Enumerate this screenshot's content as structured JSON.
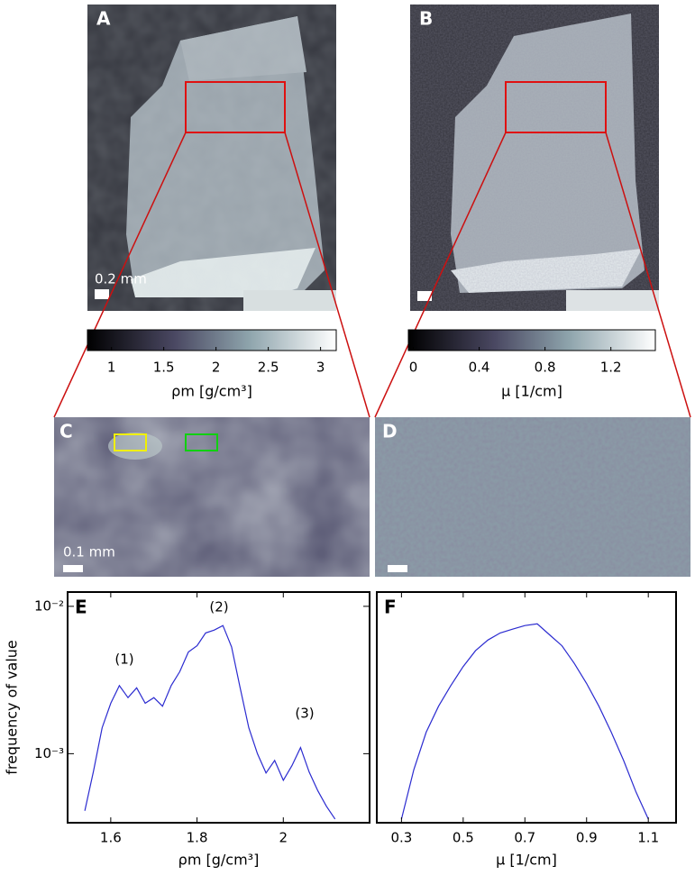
{
  "panels": [
    {
      "label": "A",
      "scale_label": "0.2 mm"
    },
    {
      "label": "B"
    },
    {
      "label": "C",
      "scale_label": "0.1 mm"
    },
    {
      "label": "D"
    }
  ],
  "colorbars": [
    {
      "label": "ρm [g/cm³]",
      "lim": [
        0.77,
        3.15
      ],
      "ticks": [
        1,
        1.5,
        2,
        2.5,
        3
      ]
    },
    {
      "label": "μ [1/cm]",
      "lim": [
        -0.03,
        1.47
      ],
      "ticks": [
        0,
        0.4,
        0.8,
        1.2
      ]
    }
  ],
  "chart_data": [
    {
      "type": "line",
      "label": "E",
      "ylabel": "frequency of value",
      "xlabel": "ρm [g/cm³]",
      "log_y": true,
      "xlim": [
        1.5,
        2.2
      ],
      "xticks": [
        1.6,
        1.8,
        2
      ],
      "ylim": [
        0.00034,
        0.0125
      ],
      "yticks": [
        {
          "value": 0.01,
          "label": "10⁻²"
        },
        {
          "value": 0.001,
          "label": "10⁻³"
        }
      ],
      "annotations": [
        "(1)",
        "(2)",
        "(3)"
      ],
      "series": [
        {
          "color": "#2b2bd0",
          "x": [
            1.54,
            1.56,
            1.58,
            1.6,
            1.62,
            1.64,
            1.66,
            1.68,
            1.7,
            1.72,
            1.74,
            1.76,
            1.78,
            1.8,
            1.82,
            1.84,
            1.86,
            1.88,
            1.9,
            1.92,
            1.94,
            1.96,
            1.98,
            2.0,
            2.02,
            2.04,
            2.06,
            2.08,
            2.1,
            2.12
          ],
          "values": [
            0.00041,
            0.00076,
            0.0015,
            0.0022,
            0.0029,
            0.0024,
            0.0028,
            0.0022,
            0.0024,
            0.0021,
            0.0029,
            0.0036,
            0.0049,
            0.0054,
            0.0066,
            0.0069,
            0.0074,
            0.0053,
            0.0028,
            0.0015,
            0.001,
            0.00074,
            0.0009,
            0.00066,
            0.00083,
            0.0011,
            0.00075,
            0.00056,
            0.00044,
            0.00036
          ]
        }
      ]
    },
    {
      "type": "line",
      "label": "F",
      "xlabel": "μ [1/cm]",
      "log_y": true,
      "xlim": [
        0.22,
        1.19
      ],
      "xticks": [
        0.3,
        0.5,
        0.7,
        0.9,
        1.1
      ],
      "ylim": [
        0.00034,
        0.0125
      ],
      "series": [
        {
          "color": "#2b2bd0",
          "x": [
            0.3,
            0.34,
            0.38,
            0.42,
            0.46,
            0.5,
            0.54,
            0.58,
            0.62,
            0.66,
            0.7,
            0.74,
            0.78,
            0.82,
            0.86,
            0.9,
            0.94,
            0.98,
            1.02,
            1.06,
            1.1
          ],
          "values": [
            0.00036,
            0.00078,
            0.0014,
            0.0021,
            0.0029,
            0.0039,
            0.005,
            0.0059,
            0.0066,
            0.007,
            0.0074,
            0.0076,
            0.0064,
            0.0054,
            0.0041,
            0.003,
            0.0021,
            0.0014,
            0.0009,
            0.00055,
            0.00036
          ]
        }
      ]
    }
  ]
}
